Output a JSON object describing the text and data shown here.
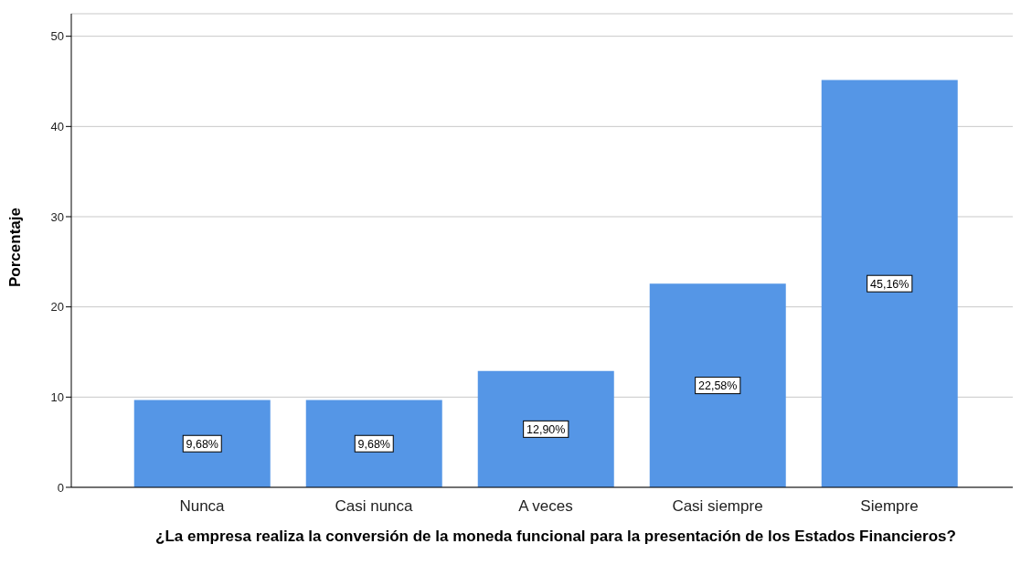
{
  "chart_data": {
    "type": "bar",
    "xlabel": "¿La empresa realiza la conversión de la moneda funcional para la presentación de los Estados Financieros?",
    "ylabel": "Porcentaje",
    "categories": [
      "Nunca",
      "Casi nunca",
      "A veces",
      "Casi siempre",
      "Siempre"
    ],
    "values": [
      9.68,
      9.68,
      12.9,
      22.58,
      45.16
    ],
    "value_labels": [
      "9,68%",
      "9,68%",
      "12,90%",
      "22,58%",
      "45,16%"
    ],
    "color": "#5596e6",
    "ylim": [
      0,
      52.5
    ],
    "yticks": [
      0,
      10,
      20,
      30,
      40,
      50
    ],
    "grid": "y"
  }
}
